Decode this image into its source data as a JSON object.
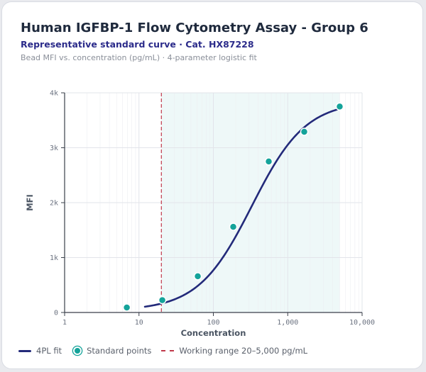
{
  "header": {
    "title": "Human IGFBP-1 Flow Cytometry Assay - Group 6",
    "subtitle": "Representative standard curve · Cat. HX87228",
    "description": "Bead MFI vs. concentration (pg/mL) · 4-parameter logistic fit"
  },
  "legend": {
    "fit_label": "4PL fit",
    "points_label": "Standard points",
    "range_label": "Working range 20–5,000 pg/mL"
  },
  "chart_data": {
    "type": "scatter",
    "x_scale": "log",
    "xlabel": "Concentration",
    "ylabel": "MFI",
    "xlim": [
      1,
      10000
    ],
    "ylim": [
      0,
      4000
    ],
    "x_ticks": [
      1,
      10,
      100,
      1000,
      10000
    ],
    "x_tick_labels": [
      "1",
      "10",
      "100",
      "1,000",
      "10,000"
    ],
    "y_ticks": [
      0,
      1000,
      2000,
      3000,
      4000
    ],
    "y_tick_labels": [
      "0",
      "1k",
      "2k",
      "3k",
      "4k"
    ],
    "grid": true,
    "legend_position": "bottom",
    "working_range": [
      20,
      5000
    ],
    "series": [
      {
        "name": "Standard points",
        "x": [
          6.86,
          20.58,
          61.73,
          185.2,
          555.6,
          1667,
          5000
        ],
        "y": [
          90,
          225,
          660,
          1560,
          2750,
          3290,
          3750
        ]
      },
      {
        "name": "4PL fit",
        "fit": {
          "a": 35,
          "d": 3850,
          "c": 330,
          "b": 1.2,
          "x_from": 12,
          "x_to": 5000
        }
      }
    ],
    "colors": {
      "fit": "#232a7a",
      "points": "#14a39a",
      "range_line": "#c0394a",
      "range_fill": "#eef8f8",
      "grid": "#eceef2",
      "axis": "#3a3f4a",
      "tick_text": "#6b7280"
    }
  }
}
